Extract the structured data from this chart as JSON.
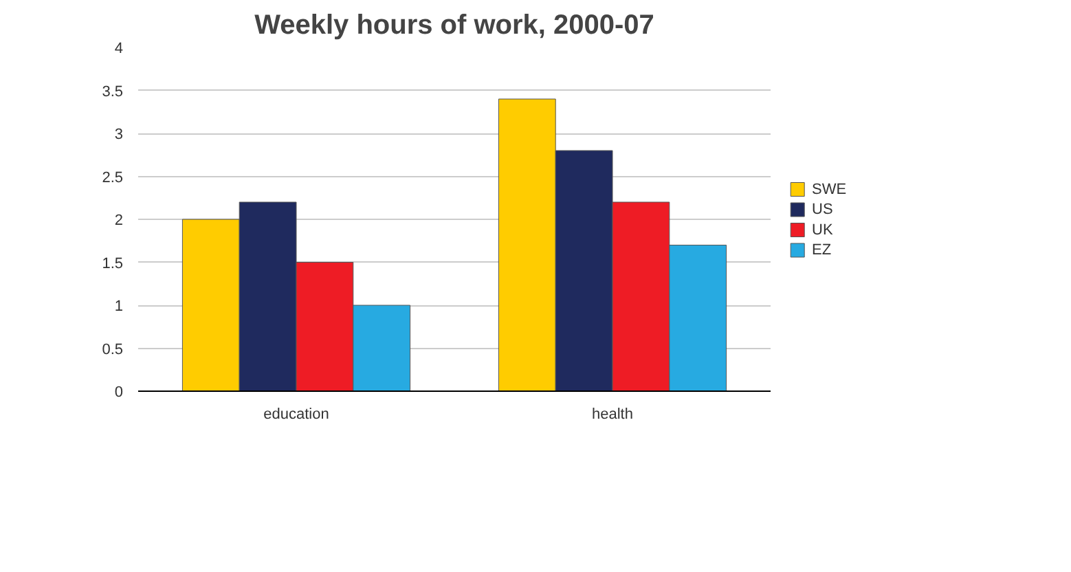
{
  "chart_data": {
    "type": "bar",
    "title": "Weekly hours of work, 2000-07",
    "categories": [
      "education",
      "health"
    ],
    "series": [
      {
        "name": "SWE",
        "color": "#ffcc00",
        "values": [
          2.0,
          3.4
        ]
      },
      {
        "name": "US",
        "color": "#1f2a5e",
        "values": [
          2.2,
          2.8
        ]
      },
      {
        "name": "UK",
        "color": "#ee1c25",
        "values": [
          1.5,
          2.2
        ]
      },
      {
        "name": "EZ",
        "color": "#27aae1",
        "values": [
          1.0,
          1.7
        ]
      }
    ],
    "ylim": [
      0,
      4
    ],
    "yticks": [
      0,
      0.5,
      1,
      1.5,
      2,
      2.5,
      3,
      3.5,
      4
    ],
    "grid": "y",
    "legend": "right"
  }
}
